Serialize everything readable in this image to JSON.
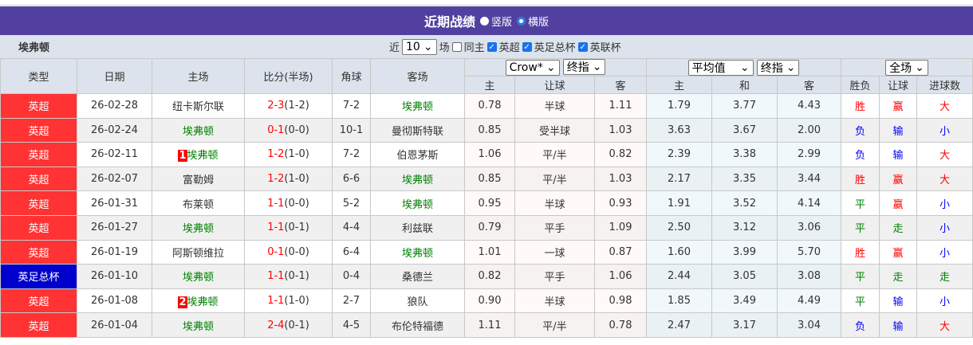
{
  "title": "近期战绩",
  "view_options": [
    {
      "label": "竖版",
      "selected": false
    },
    {
      "label": "横版",
      "selected": true
    }
  ],
  "team": "埃弗顿",
  "filter": {
    "prefix": "近",
    "count": "10",
    "suffix": "场",
    "checks": [
      {
        "label": "同主",
        "checked": false
      },
      {
        "label": "英超",
        "checked": true
      },
      {
        "label": "英足总杯",
        "checked": true
      },
      {
        "label": "英联杯",
        "checked": true
      }
    ]
  },
  "headers": {
    "type": "类型",
    "date": "日期",
    "home": "主场",
    "score": "比分(半场)",
    "corner": "角球",
    "away": "客场"
  },
  "selects": {
    "company": "Crow*",
    "odds1": "终指",
    "avg": "平均值",
    "odds2": "终指",
    "period": "全场"
  },
  "sub": [
    "主",
    "让球",
    "客",
    "主",
    "和",
    "客",
    "胜负",
    "让球",
    "进球数"
  ],
  "colors": {
    "league": "#ff3333",
    "cup": "#0000cc",
    "header": "#5140a0",
    "win": "#ff0000",
    "lose": "#0000ff",
    "draw": "#008000"
  },
  "rows": [
    {
      "lg": "英超",
      "cup": false,
      "date": "26-02-28",
      "home": "纽卡斯尔联",
      "hr": "",
      "home_is_team": false,
      "ft": "2-3",
      "ht": "(1-2)",
      "corner": "7-2",
      "away": "埃弗顿",
      "away_is_team": true,
      "o": [
        "0.78",
        "半球",
        "1.11",
        "1.79",
        "3.77",
        "4.43"
      ],
      "res": [
        "胜",
        "赢",
        "大"
      ]
    },
    {
      "lg": "英超",
      "cup": false,
      "date": "26-02-24",
      "home": "埃弗顿",
      "hr": "",
      "home_is_team": true,
      "ft": "0-1",
      "ht": "(0-0)",
      "corner": "10-1",
      "away": "曼彻斯特联",
      "away_is_team": false,
      "o": [
        "0.85",
        "受半球",
        "1.03",
        "3.63",
        "3.67",
        "2.00"
      ],
      "res": [
        "负",
        "输",
        "小"
      ]
    },
    {
      "lg": "英超",
      "cup": false,
      "date": "26-02-11",
      "home": "埃弗顿",
      "hr": "1",
      "home_is_team": true,
      "ft": "1-2",
      "ht": "(1-0)",
      "corner": "7-2",
      "away": "伯恩茅斯",
      "away_is_team": false,
      "o": [
        "1.06",
        "平/半",
        "0.82",
        "2.39",
        "3.38",
        "2.99"
      ],
      "res": [
        "负",
        "输",
        "大"
      ]
    },
    {
      "lg": "英超",
      "cup": false,
      "date": "26-02-07",
      "home": "富勒姆",
      "hr": "",
      "home_is_team": false,
      "ft": "1-2",
      "ht": "(1-0)",
      "corner": "6-6",
      "away": "埃弗顿",
      "away_is_team": true,
      "o": [
        "0.85",
        "平/半",
        "1.03",
        "2.17",
        "3.35",
        "3.44"
      ],
      "res": [
        "胜",
        "赢",
        "大"
      ]
    },
    {
      "lg": "英超",
      "cup": false,
      "date": "26-01-31",
      "home": "布莱顿",
      "hr": "",
      "home_is_team": false,
      "ft": "1-1",
      "ht": "(0-0)",
      "corner": "5-2",
      "away": "埃弗顿",
      "away_is_team": true,
      "o": [
        "0.95",
        "半球",
        "0.93",
        "1.91",
        "3.52",
        "4.14"
      ],
      "res": [
        "平",
        "赢",
        "小"
      ]
    },
    {
      "lg": "英超",
      "cup": false,
      "date": "26-01-27",
      "home": "埃弗顿",
      "hr": "",
      "home_is_team": true,
      "ft": "1-1",
      "ht": "(0-1)",
      "corner": "4-4",
      "away": "利兹联",
      "away_is_team": false,
      "o": [
        "0.79",
        "平手",
        "1.09",
        "2.50",
        "3.12",
        "3.06"
      ],
      "res": [
        "平",
        "走",
        "小"
      ]
    },
    {
      "lg": "英超",
      "cup": false,
      "date": "26-01-19",
      "home": "阿斯顿维拉",
      "hr": "",
      "home_is_team": false,
      "ft": "0-1",
      "ht": "(0-0)",
      "corner": "6-4",
      "away": "埃弗顿",
      "away_is_team": true,
      "o": [
        "1.01",
        "一球",
        "0.87",
        "1.60",
        "3.99",
        "5.70"
      ],
      "res": [
        "胜",
        "赢",
        "小"
      ]
    },
    {
      "lg": "英足总杯",
      "cup": true,
      "date": "26-01-10",
      "home": "埃弗顿",
      "hr": "",
      "home_is_team": true,
      "ft": "1-1",
      "ht": "(0-1)",
      "corner": "0-4",
      "away": "桑德兰",
      "away_is_team": false,
      "o": [
        "0.82",
        "平手",
        "1.06",
        "2.44",
        "3.05",
        "3.08"
      ],
      "res": [
        "平",
        "走",
        "走"
      ]
    },
    {
      "lg": "英超",
      "cup": false,
      "date": "26-01-08",
      "home": "埃弗顿",
      "hr": "2",
      "home_is_team": true,
      "ft": "1-1",
      "ht": "(1-0)",
      "corner": "2-7",
      "away": "狼队",
      "away_is_team": false,
      "o": [
        "0.90",
        "半球",
        "0.98",
        "1.85",
        "3.49",
        "4.49"
      ],
      "res": [
        "平",
        "输",
        "小"
      ]
    },
    {
      "lg": "英超",
      "cup": false,
      "date": "26-01-04",
      "home": "埃弗顿",
      "hr": "",
      "home_is_team": true,
      "ft": "2-4",
      "ht": "(0-1)",
      "corner": "4-5",
      "away": "布伦特福德",
      "away_is_team": false,
      "o": [
        "1.11",
        "平/半",
        "0.78",
        "2.47",
        "3.17",
        "3.04"
      ],
      "res": [
        "负",
        "输",
        "大"
      ]
    }
  ]
}
